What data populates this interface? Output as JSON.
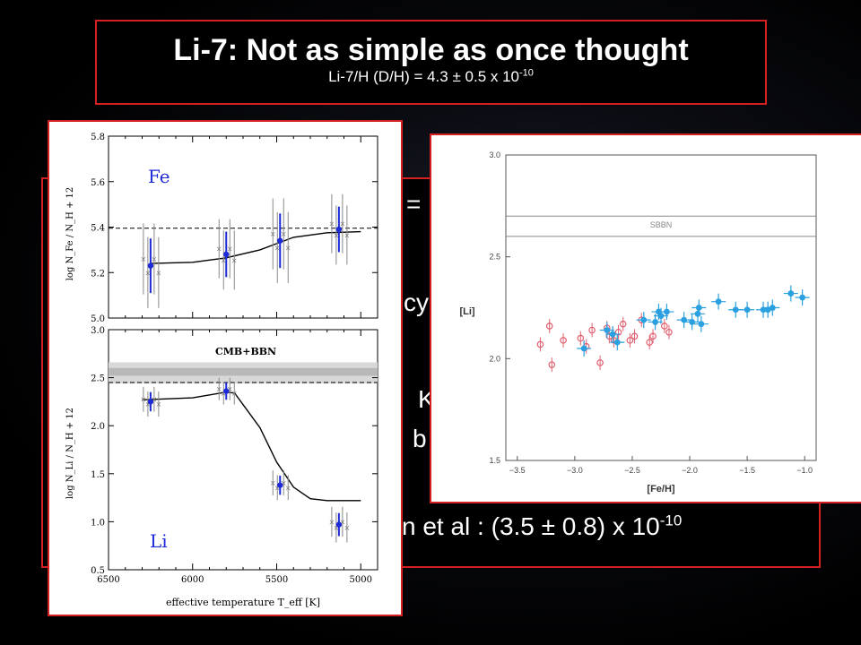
{
  "slide": {
    "title": "Li-7:  Not as simple as once thought",
    "subtitle_base": "Li-7/H (D/H) = 4.3 ± 0.5 x 10",
    "subtitle_exp": "-10",
    "bg_fragments": {
      "eq": "=",
      "cy": "cy",
      "k": "K",
      "b": "b",
      "bottom_base": "n et al :  (3.5 ± 0.8) x 10",
      "bottom_exp": "-10"
    }
  },
  "colors": {
    "border": "#d42020",
    "blue_points": "#1e2ad8",
    "red_points": "#e06070",
    "cyan_points": "#2aa0e0"
  },
  "chart_data": [
    {
      "type": "scatter",
      "title": "Fe",
      "ylabel": "log N_Fe / N_H + 12",
      "ylim": [
        5.0,
        5.8
      ],
      "xlim": [
        6500,
        4900
      ],
      "yticks": [
        "5.0",
        "5.2",
        "5.4",
        "5.6",
        "5.8"
      ],
      "dashed_y": 5.395,
      "points": [
        {
          "x": 6250,
          "y": 5.23,
          "err": 0.12
        },
        {
          "x": 5800,
          "y": 5.28,
          "err": 0.1
        },
        {
          "x": 5480,
          "y": 5.34,
          "err": 0.12
        },
        {
          "x": 5130,
          "y": 5.39,
          "err": 0.1
        }
      ],
      "model_curve": [
        [
          6250,
          5.24
        ],
        [
          6000,
          5.245
        ],
        [
          5800,
          5.265
        ],
        [
          5600,
          5.3
        ],
        [
          5400,
          5.355
        ],
        [
          5200,
          5.375
        ],
        [
          5000,
          5.38
        ]
      ]
    },
    {
      "type": "scatter",
      "title": "Li",
      "band_label": "CMB+BBN",
      "ylabel": "log N_Li / N_H + 12",
      "xlabel": "effective temperature T_eff  [K]",
      "ylim": [
        0.5,
        3.0
      ],
      "xlim": [
        6500,
        4900
      ],
      "yticks": [
        "0.5",
        "1.0",
        "1.5",
        "2.0",
        "2.5",
        "3.0"
      ],
      "xticks": [
        "6500",
        "6000",
        "5500",
        "5000"
      ],
      "band": [
        2.44,
        2.66
      ],
      "dashed_y": 2.45,
      "points": [
        {
          "x": 6250,
          "y": 2.25,
          "err": 0.1
        },
        {
          "x": 5800,
          "y": 2.36,
          "err": 0.09
        },
        {
          "x": 5480,
          "y": 1.38,
          "err": 0.1
        },
        {
          "x": 5130,
          "y": 0.97,
          "err": 0.12
        }
      ],
      "model_curve": [
        [
          6300,
          2.27
        ],
        [
          6000,
          2.29
        ],
        [
          5800,
          2.35
        ],
        [
          5750,
          2.34
        ],
        [
          5600,
          1.98
        ],
        [
          5500,
          1.62
        ],
        [
          5400,
          1.36
        ],
        [
          5300,
          1.24
        ],
        [
          5200,
          1.22
        ],
        [
          5000,
          1.22
        ]
      ]
    },
    {
      "type": "scatter",
      "xlabel": "[Fe/H]",
      "ylabel": "[Li]",
      "xlim": [
        -3.6,
        -0.9
      ],
      "ylim": [
        1.5,
        3.0
      ],
      "xticks": [
        "−3.5",
        "−3.0",
        "−2.5",
        "−2.0",
        "−1.5",
        "−1.0"
      ],
      "yticks": [
        "1.5",
        "2.0",
        "2.5",
        "3.0"
      ],
      "band": [
        2.6,
        2.7
      ],
      "band_label": "SBBN",
      "series": [
        {
          "points": [
            [
              -3.3,
              2.07
            ],
            [
              -3.22,
              2.16
            ],
            [
              -3.2,
              1.97
            ],
            [
              -3.1,
              2.09
            ],
            [
              -2.95,
              2.1
            ],
            [
              -2.9,
              2.06
            ],
            [
              -2.85,
              2.14
            ],
            [
              -2.78,
              1.98
            ],
            [
              -2.72,
              2.15
            ],
            [
              -2.7,
              2.11
            ],
            [
              -2.66,
              2.09
            ],
            [
              -2.62,
              2.13
            ],
            [
              -2.58,
              2.17
            ],
            [
              -2.52,
              2.09
            ],
            [
              -2.48,
              2.11
            ],
            [
              -2.42,
              2.19
            ],
            [
              -2.35,
              2.08
            ],
            [
              -2.32,
              2.11
            ],
            [
              -2.22,
              2.16
            ],
            [
              -2.18,
              2.13
            ]
          ]
        },
        {
          "points": [
            [
              -2.92,
              2.05
            ],
            [
              -2.72,
              2.14
            ],
            [
              -2.67,
              2.12
            ],
            [
              -2.63,
              2.08
            ],
            [
              -2.4,
              2.19
            ],
            [
              -2.3,
              2.18
            ],
            [
              -2.27,
              2.23
            ],
            [
              -2.25,
              2.21
            ],
            [
              -2.2,
              2.23
            ],
            [
              -2.05,
              2.19
            ],
            [
              -1.98,
              2.18
            ],
            [
              -1.93,
              2.22
            ],
            [
              -1.92,
              2.25
            ],
            [
              -1.9,
              2.17
            ],
            [
              -1.75,
              2.28
            ],
            [
              -1.6,
              2.24
            ],
            [
              -1.5,
              2.24
            ],
            [
              -1.36,
              2.24
            ],
            [
              -1.32,
              2.24
            ],
            [
              -1.28,
              2.25
            ],
            [
              -1.12,
              2.32
            ],
            [
              -1.02,
              2.3
            ]
          ]
        }
      ]
    }
  ]
}
